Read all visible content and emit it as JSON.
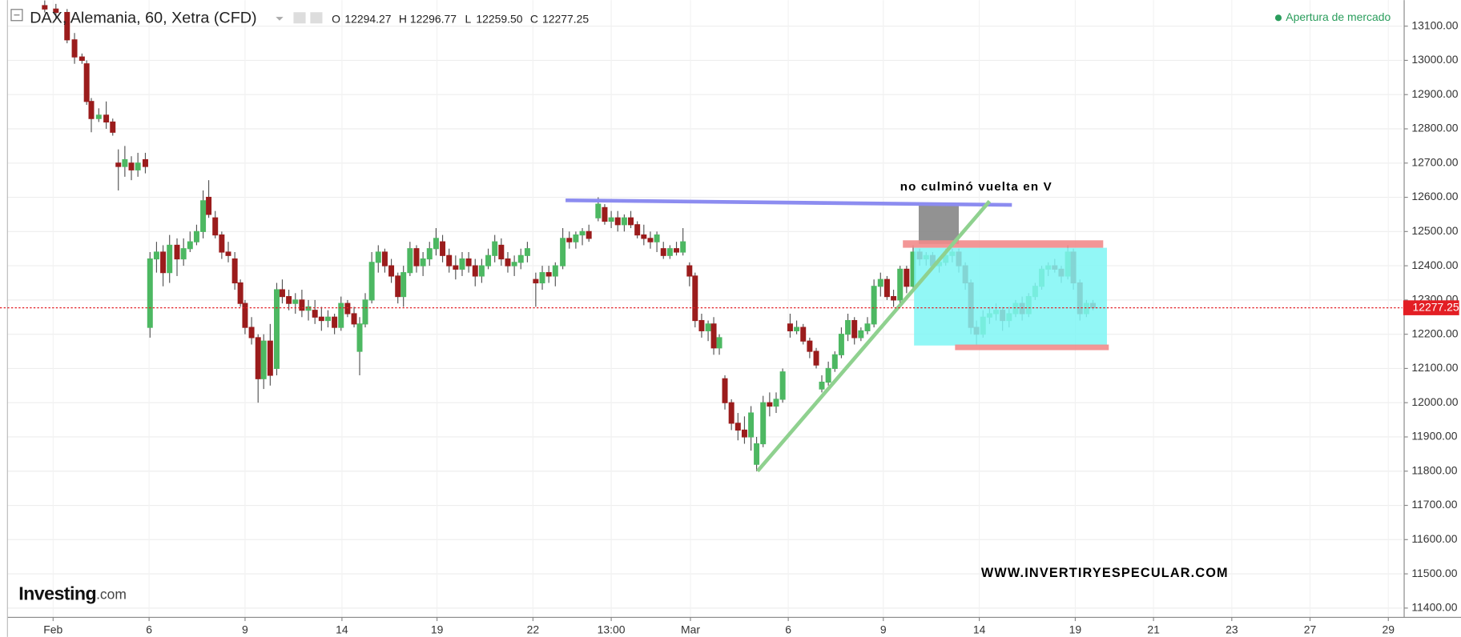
{
  "chart_data": {
    "type": "candlestick",
    "title": "DAX, Alemania, 60, Xetra (CFD)",
    "ohlc_header": {
      "o_label": "O",
      "open": "12294.27",
      "h_label": "H",
      "high": "12296.77",
      "l_label": "L",
      "low": "12259.50",
      "c_label": "C",
      "close": "12277.25"
    },
    "status": "Apertura de mercado",
    "annotation": "no culminó vuelta en V",
    "watermark": "WWW.INVERTIRYESPECULAR.COM",
    "logo": {
      "main": "Investing",
      "suffix": ".com"
    },
    "last_price": 12277.25,
    "up_color": "#4db862",
    "down_color": "#9b1c1c",
    "last_price_color": "#e31e24",
    "grid": true,
    "xlim": [
      8,
      1505
    ],
    "ylim": [
      11373,
      13176
    ],
    "xticks": [
      {
        "value": 57,
        "label": "Feb"
      },
      {
        "value": 160,
        "label": "6"
      },
      {
        "value": 263,
        "label": "9"
      },
      {
        "value": 367,
        "label": "14"
      },
      {
        "value": 469,
        "label": "19"
      },
      {
        "value": 572,
        "label": "22"
      },
      {
        "value": 656,
        "label": "13:00"
      },
      {
        "value": 741,
        "label": "Mar"
      },
      {
        "value": 846,
        "label": "6"
      },
      {
        "value": 948,
        "label": "9"
      },
      {
        "value": 1051,
        "label": "14"
      },
      {
        "value": 1154,
        "label": "19"
      },
      {
        "value": 1238,
        "label": "21"
      },
      {
        "value": 1322,
        "label": "23"
      },
      {
        "value": 1406,
        "label": "27"
      },
      {
        "value": 1490,
        "label": "29"
      }
    ],
    "yticks": [
      {
        "value": 11400,
        "label": "11400.00"
      },
      {
        "value": 11500,
        "label": "11500.00"
      },
      {
        "value": 11600,
        "label": "11600.00"
      },
      {
        "value": 11700,
        "label": "11700.00"
      },
      {
        "value": 11800,
        "label": "11800.00"
      },
      {
        "value": 11900,
        "label": "11900.00"
      },
      {
        "value": 12000,
        "label": "12000.00"
      },
      {
        "value": 12100,
        "label": "12100.00"
      },
      {
        "value": 12200,
        "label": "12200.00"
      },
      {
        "value": 12300,
        "label": "12300.00"
      },
      {
        "value": 12400,
        "label": "12400.00"
      },
      {
        "value": 12500,
        "label": "12500.00"
      },
      {
        "value": 12600,
        "label": "12600.00"
      },
      {
        "value": 12700,
        "label": "12700.00"
      },
      {
        "value": 12800,
        "label": "12800.00"
      },
      {
        "value": 12900,
        "label": "12900.00"
      },
      {
        "value": 13000,
        "label": "13000.00"
      },
      {
        "value": 13100,
        "label": "13100.00"
      }
    ],
    "x": [
      48,
      60,
      72,
      80,
      88,
      93,
      98,
      106,
      114,
      121,
      127,
      134,
      141,
      148,
      156,
      161,
      168,
      175,
      182,
      190,
      197,
      204,
      211,
      218,
      224,
      231,
      238,
      245,
      252,
      258,
      263,
      270,
      277,
      283,
      290,
      297,
      303,
      310,
      317,
      324,
      331,
      338,
      345,
      352,
      359,
      366,
      373,
      380,
      386,
      392,
      399,
      406,
      413,
      420,
      427,
      433,
      440,
      447,
      454,
      461,
      468,
      475,
      482,
      489,
      496,
      503,
      510,
      517,
      524,
      531,
      538,
      545,
      552,
      559,
      566,
      575,
      582,
      589,
      596,
      604,
      611,
      618,
      625,
      632,
      642,
      649,
      656,
      663,
      670,
      677,
      684,
      691,
      698,
      705,
      712,
      719,
      726,
      733,
      740,
      746,
      753,
      760,
      766,
      772,
      778,
      785,
      792,
      799,
      806,
      812,
      819,
      826,
      833,
      840,
      848,
      855,
      862,
      869,
      876,
      882,
      889,
      896,
      903,
      910,
      917,
      924,
      931,
      938,
      945,
      952,
      959,
      966,
      973,
      980,
      987,
      994,
      1001,
      1008,
      1015,
      1022,
      1029,
      1036,
      1042,
      1048,
      1055,
      1062,
      1069,
      1076,
      1083,
      1090,
      1097,
      1104,
      1111,
      1118,
      1125,
      1132,
      1139,
      1146,
      1152,
      1159,
      1166,
      1173
    ],
    "open": [
      13160,
      13150,
      13140,
      13060,
      13010,
      12990,
      12880,
      12830,
      12840,
      12820,
      12700,
      12690,
      12700,
      12680,
      12710,
      12220,
      12420,
      12440,
      12380,
      12460,
      12420,
      12450,
      12470,
      12500,
      12600,
      12540,
      12490,
      12440,
      12420,
      12350,
      12290,
      12220,
      12190,
      12070,
      12180,
      12100,
      12330,
      12310,
      12290,
      12300,
      12270,
      12270,
      12250,
      12240,
      12250,
      12220,
      12290,
      12260,
      12150,
      12230,
      12300,
      12410,
      12440,
      12400,
      12370,
      12310,
      12380,
      12450,
      12400,
      12420,
      12450,
      12470,
      12430,
      12400,
      12390,
      12420,
      12400,
      12370,
      12400,
      12430,
      12460,
      12420,
      12400,
      12410,
      12430,
      12360,
      12350,
      12380,
      12370,
      12400,
      12480,
      12470,
      12490,
      12500,
      12540,
      12570,
      12530,
      12540,
      12520,
      12540,
      12520,
      12490,
      12480,
      12470,
      12450,
      12430,
      12450,
      12440,
      12400,
      12370,
      12240,
      12210,
      12230,
      12160,
      12070,
      12000,
      11940,
      11920,
      11900,
      11820,
      11880,
      12000,
      11990,
      12010,
      12230,
      12210,
      12220,
      12180,
      12150,
      12040,
      12060,
      12100,
      12140,
      12200,
      12240,
      12190,
      12210,
      12230,
      12340,
      12360,
      12310,
      12300,
      12390,
      12340,
      12440,
      12420,
      12430,
      12400,
      12410,
      12430,
      12440,
      12400,
      12350,
      12220,
      12200,
      12250,
      12260,
      12270,
      12240,
      12260,
      12290,
      12260,
      12310,
      12340,
      12390,
      12400,
      12390,
      12370,
      12440,
      12350,
      12260,
      12290
    ],
    "high": [
      13175,
      13165,
      13150,
      13080,
      13020,
      13000,
      12890,
      12860,
      12880,
      12830,
      12740,
      12750,
      12720,
      12730,
      12730,
      12440,
      12470,
      12460,
      12490,
      12480,
      12480,
      12500,
      12520,
      12620,
      12650,
      12560,
      12500,
      12470,
      12440,
      12360,
      12300,
      12250,
      12200,
      12200,
      12230,
      12350,
      12360,
      12330,
      12320,
      12330,
      12300,
      12300,
      12280,
      12270,
      12260,
      12310,
      12300,
      12280,
      12250,
      12320,
      12440,
      12460,
      12450,
      12420,
      12380,
      12400,
      12470,
      12460,
      12440,
      12470,
      12510,
      12490,
      12450,
      12430,
      12440,
      12440,
      12420,
      12420,
      12450,
      12490,
      12480,
      12440,
      12430,
      12450,
      12470,
      12380,
      12400,
      12400,
      12410,
      12510,
      12500,
      12500,
      12510,
      12520,
      12600,
      12580,
      12560,
      12560,
      12550,
      12560,
      12530,
      12520,
      12500,
      12500,
      12470,
      12460,
      12470,
      12510,
      12410,
      12380,
      12260,
      12240,
      12250,
      12200,
      12080,
      12010,
      11970,
      11960,
      11990,
      11900,
      12020,
      12030,
      12030,
      12100,
      12260,
      12240,
      12230,
      12190,
      12160,
      12080,
      12120,
      12150,
      12220,
      12260,
      12250,
      12220,
      12250,
      12360,
      12380,
      12370,
      12330,
      12400,
      12400,
      12460,
      12450,
      12440,
      12440,
      12420,
      12450,
      12450,
      12450,
      12410,
      12360,
      12240,
      12270,
      12280,
      12290,
      12280,
      12280,
      12300,
      12310,
      12320,
      12350,
      12400,
      12410,
      12420,
      12400,
      12460,
      12450,
      12360,
      12300,
      12300
    ],
    "low": [
      13140,
      13120,
      13050,
      12990,
      12990,
      12870,
      12790,
      12820,
      12800,
      12780,
      12620,
      12660,
      12650,
      12660,
      12670,
      12190,
      12380,
      12340,
      12350,
      12370,
      12400,
      12440,
      12460,
      12480,
      12540,
      12480,
      12420,
      12410,
      12330,
      12280,
      12200,
      12170,
      12000,
      12040,
      12050,
      12080,
      12290,
      12270,
      12260,
      12250,
      12240,
      12230,
      12210,
      12220,
      12200,
      12210,
      12250,
      12220,
      12080,
      12220,
      12290,
      12380,
      12380,
      12350,
      12290,
      12280,
      12370,
      12380,
      12370,
      12400,
      12430,
      12410,
      12380,
      12360,
      12370,
      12380,
      12340,
      12350,
      12390,
      12410,
      12400,
      12380,
      12370,
      12390,
      12410,
      12280,
      12330,
      12350,
      12340,
      12390,
      12450,
      12450,
      12460,
      12470,
      12530,
      12520,
      12510,
      12500,
      12500,
      12510,
      12480,
      12460,
      12450,
      12440,
      12420,
      12420,
      12430,
      12430,
      12340,
      12220,
      12190,
      12180,
      12140,
      12140,
      11980,
      11920,
      11890,
      11880,
      11860,
      11800,
      11870,
      11960,
      11970,
      12000,
      12190,
      12200,
      12170,
      12130,
      12100,
      12030,
      12050,
      12090,
      12130,
      12180,
      12170,
      12180,
      12200,
      12220,
      12310,
      12300,
      12280,
      12290,
      12320,
      12330,
      12400,
      12400,
      12390,
      12380,
      12400,
      12410,
      12380,
      12330,
      12200,
      12170,
      12190,
      12230,
      12240,
      12210,
      12220,
      12250,
      12240,
      12250,
      12300,
      12330,
      12370,
      12380,
      12350,
      12360,
      12330,
      12240,
      12250,
      12270
    ],
    "close": [
      13150,
      13140,
      13060,
      13010,
      13000,
      12880,
      12830,
      12840,
      12820,
      12790,
      12690,
      12710,
      12680,
      12700,
      12690,
      12420,
      12440,
      12380,
      12460,
      12420,
      12450,
      12470,
      12500,
      12590,
      12550,
      12490,
      12440,
      12430,
      12350,
      12290,
      12220,
      12190,
      12070,
      12180,
      12080,
      12330,
      12310,
      12290,
      12300,
      12270,
      12280,
      12250,
      12240,
      12250,
      12220,
      12290,
      12260,
      12230,
      12230,
      12300,
      12410,
      12440,
      12400,
      12370,
      12310,
      12380,
      12450,
      12400,
      12420,
      12450,
      12480,
      12430,
      12400,
      12390,
      12420,
      12400,
      12370,
      12400,
      12430,
      12470,
      12420,
      12400,
      12410,
      12430,
      12450,
      12350,
      12380,
      12370,
      12400,
      12480,
      12470,
      12490,
      12500,
      12480,
      12580,
      12530,
      12540,
      12520,
      12540,
      12520,
      12490,
      12480,
      12470,
      12490,
      12430,
      12450,
      12440,
      12470,
      12370,
      12240,
      12210,
      12230,
      12160,
      12190,
      12000,
      11940,
      11920,
      11900,
      11970,
      11880,
      12000,
      11990,
      12010,
      12090,
      12210,
      12220,
      12180,
      12150,
      12110,
      12060,
      12100,
      12140,
      12200,
      12240,
      12190,
      12210,
      12230,
      12340,
      12360,
      12310,
      12300,
      12390,
      12340,
      12440,
      12420,
      12430,
      12400,
      12410,
      12430,
      12440,
      12400,
      12350,
      12220,
      12200,
      12250,
      12260,
      12270,
      12240,
      12260,
      12290,
      12260,
      12310,
      12340,
      12390,
      12400,
      12390,
      12370,
      12440,
      12350,
      12260,
      12290,
      12277.25
    ]
  }
}
